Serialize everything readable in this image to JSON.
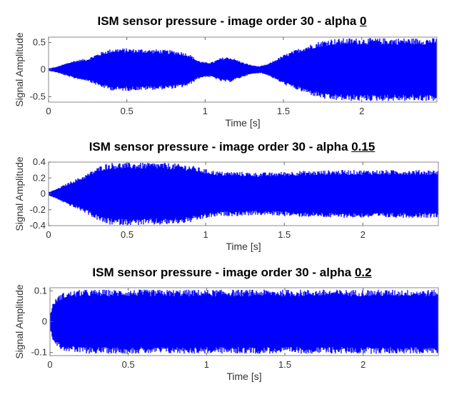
{
  "chart_data": [
    {
      "type": "area",
      "title_prefix": "ISM sensor pressure - image order 30 - alpha ",
      "title_alpha": "0",
      "xlabel": "Time [s]",
      "ylabel": "Signal Amplitude",
      "xlim": [
        0,
        2.48
      ],
      "ylim": [
        -0.6,
        0.6
      ],
      "xticks": [
        0,
        0.5,
        1,
        1.5,
        2
      ],
      "xtick_labels": [
        "0",
        "0.5",
        "1",
        "1.5",
        "2"
      ],
      "yticks": [
        0.5,
        0,
        -0.5
      ],
      "ytick_labels": [
        "0.5",
        "0",
        "-0.5"
      ],
      "color": "#0000ff",
      "series": [
        {
          "envelope_t": [
            0,
            0.05,
            0.1,
            0.15,
            0.2,
            0.25,
            0.3,
            0.35,
            0.4,
            0.45,
            0.5,
            0.55,
            0.6,
            0.65,
            0.7,
            0.75,
            0.8,
            0.85,
            0.9,
            0.95,
            1.0,
            1.05,
            1.1,
            1.15,
            1.2,
            1.25,
            1.3,
            1.35,
            1.4,
            1.45,
            1.5,
            1.55,
            1.6,
            1.65,
            1.7,
            1.75,
            1.8,
            1.85,
            1.9,
            1.95,
            2.0,
            2.05,
            2.1,
            2.15,
            2.2,
            2.25,
            2.3,
            2.35,
            2.4,
            2.48
          ],
          "envelope_amp": [
            0.02,
            0.05,
            0.1,
            0.15,
            0.18,
            0.2,
            0.27,
            0.33,
            0.37,
            0.38,
            0.38,
            0.37,
            0.37,
            0.36,
            0.36,
            0.35,
            0.34,
            0.32,
            0.28,
            0.17,
            0.13,
            0.14,
            0.21,
            0.23,
            0.18,
            0.12,
            0.08,
            0.06,
            0.1,
            0.18,
            0.26,
            0.32,
            0.38,
            0.43,
            0.48,
            0.52,
            0.55,
            0.55,
            0.56,
            0.56,
            0.56,
            0.56,
            0.56,
            0.56,
            0.56,
            0.56,
            0.56,
            0.56,
            0.56,
            0.56
          ]
        }
      ]
    },
    {
      "type": "area",
      "title_prefix": "ISM sensor pressure - image order 30 - alpha ",
      "title_alpha": "0.15",
      "xlabel": "Time [s]",
      "ylabel": "Signal Amplitude",
      "xlim": [
        0,
        2.48
      ],
      "ylim": [
        -0.4,
        0.4
      ],
      "xticks": [
        0,
        0.5,
        1,
        1.5,
        2
      ],
      "xtick_labels": [
        "0",
        "0.5",
        "1",
        "1.5",
        "2"
      ],
      "yticks": [
        0.4,
        0.2,
        0,
        -0.2,
        -0.4
      ],
      "ytick_labels": [
        "0.4",
        "0.2",
        "0",
        "-0.2",
        "-0.4"
      ],
      "color": "#0000ff",
      "series": [
        {
          "envelope_t": [
            0,
            0.05,
            0.1,
            0.15,
            0.2,
            0.25,
            0.3,
            0.35,
            0.4,
            0.5,
            0.6,
            0.7,
            0.8,
            0.9,
            1.0,
            1.1,
            1.2,
            1.3,
            1.4,
            1.5,
            1.6,
            1.7,
            1.8,
            1.9,
            2.0,
            2.1,
            2.2,
            2.3,
            2.48
          ],
          "envelope_amp": [
            0.02,
            0.06,
            0.11,
            0.16,
            0.2,
            0.25,
            0.31,
            0.36,
            0.38,
            0.38,
            0.38,
            0.38,
            0.37,
            0.35,
            0.3,
            0.27,
            0.27,
            0.26,
            0.26,
            0.27,
            0.28,
            0.28,
            0.29,
            0.29,
            0.29,
            0.29,
            0.29,
            0.29,
            0.29
          ]
        }
      ]
    },
    {
      "type": "area",
      "title_prefix": "ISM sensor pressure - image order 30 - alpha ",
      "title_alpha": "0.2",
      "xlabel": "Time [s]",
      "ylabel": "Signal Amplitude",
      "xlim": [
        0,
        2.48
      ],
      "ylim": [
        -0.11,
        0.11
      ],
      "xticks": [
        0,
        0.5,
        1,
        1.5,
        2
      ],
      "xtick_labels": [
        "0",
        "0.5",
        "1",
        "1.5",
        "2"
      ],
      "yticks": [
        0.1,
        0,
        -0.1
      ],
      "ytick_labels": [
        "0.1",
        "0",
        "-0.1"
      ],
      "color": "#0000ff",
      "series": [
        {
          "envelope_t": [
            0,
            0.02,
            0.05,
            0.08,
            0.1,
            0.15,
            0.2,
            0.25,
            0.3,
            0.5,
            1.0,
            1.5,
            2.0,
            2.48
          ],
          "envelope_amp": [
            0.02,
            0.06,
            0.08,
            0.09,
            0.092,
            0.097,
            0.1,
            0.1,
            0.1,
            0.1,
            0.1,
            0.1,
            0.1,
            0.1
          ]
        }
      ]
    }
  ]
}
